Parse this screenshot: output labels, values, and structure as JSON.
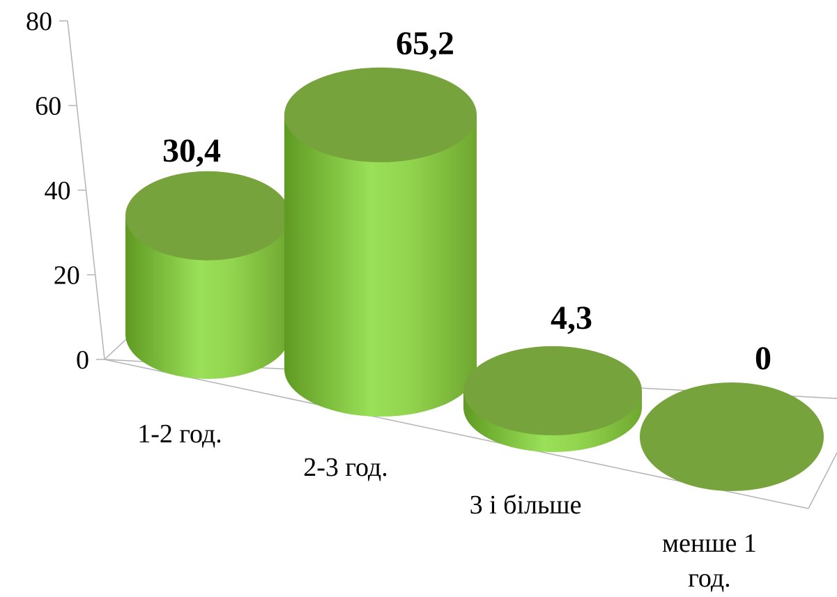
{
  "chart_data": {
    "type": "bar",
    "style": "3d-cylinder",
    "categories": [
      "1-2 год.",
      "2-3 год.",
      "3 і більше",
      "менше 1 год."
    ],
    "values": [
      30.4,
      65.2,
      4.3,
      0
    ],
    "data_labels": [
      "30,4",
      "65,2",
      "4,3",
      "0"
    ],
    "ylim": [
      0,
      80
    ],
    "yticks": [
      0,
      20,
      40,
      60,
      80
    ],
    "ytick_labels": [
      "0",
      "20",
      "40",
      "60",
      "80"
    ],
    "grid": false,
    "legend": "none",
    "colors": {
      "side": "#92d050",
      "top": "#76a33b",
      "side_dark": "#6a9e2c"
    }
  }
}
